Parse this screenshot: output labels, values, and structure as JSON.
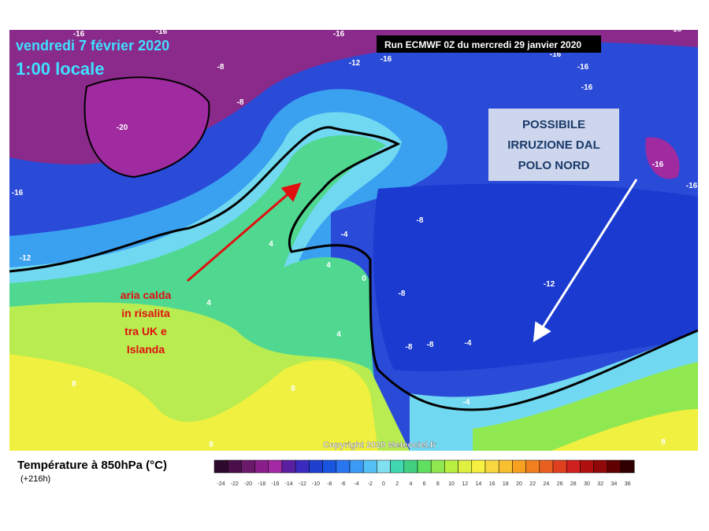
{
  "header": {
    "date": "vendredi 7 février 2020",
    "time": "1:00 locale",
    "run": "Run ECMWF 0Z du mercredi 29 janvier 2020"
  },
  "annotations": {
    "north": [
      "POSSIBILE",
      "IRRUZIONE DAL",
      "POLO NORD"
    ],
    "warm": [
      "aria calda",
      "in risalita",
      "tra UK e",
      "Islanda"
    ]
  },
  "map": {
    "copyright": "Copyright 2020 Meteociel.fr",
    "contour_labels": [
      "-16",
      "-16",
      "-16",
      "-16",
      "-12",
      "-16",
      "-16",
      "-16",
      "-16",
      "-8",
      "-8",
      "-20",
      "-16",
      "-16",
      "-16",
      "-12",
      "-8",
      "-4",
      "4",
      "4",
      "0",
      "-8",
      "-12",
      "4",
      "4",
      "-8",
      "-8",
      "-4",
      "8",
      "8",
      "-4",
      "8",
      "8"
    ]
  },
  "legend": {
    "title": "Température à 850hPa (°C)",
    "lead": "(+216h)",
    "ticks": [
      -24,
      -22,
      -20,
      -18,
      -16,
      -14,
      -12,
      -10,
      -8,
      -6,
      -4,
      -2,
      0,
      2,
      4,
      6,
      8,
      10,
      12,
      14,
      16,
      18,
      20,
      22,
      24,
      26,
      28,
      30,
      32,
      34,
      36
    ],
    "colors": [
      "#2d0a2d",
      "#4a0f4a",
      "#6b1a6b",
      "#8a1e8a",
      "#a32aa3",
      "#5a1fa0",
      "#3a2bc0",
      "#2040d0",
      "#1a55e0",
      "#2a75f0",
      "#3a9af5",
      "#55c0f5",
      "#80e0f0",
      "#40d8b0",
      "#40d080",
      "#60e060",
      "#90e850",
      "#b8f040",
      "#e0f040",
      "#f8f040",
      "#f8d840",
      "#f8c030",
      "#f8a020",
      "#f08020",
      "#e86020",
      "#e04020",
      "#d02020",
      "#b01010",
      "#900808",
      "#600000",
      "#300000"
    ]
  }
}
